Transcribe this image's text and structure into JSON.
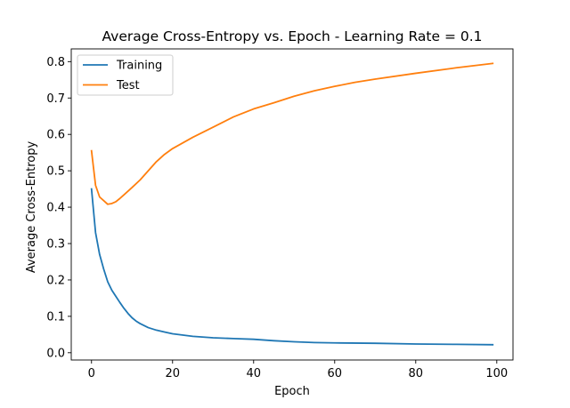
{
  "chart_data": {
    "type": "line",
    "title": "Average Cross-Entropy vs. Epoch - Learning Rate = 0.1",
    "xlabel": "Epoch",
    "ylabel": "Average Cross-Entropy",
    "xlim": [
      -5,
      104
    ],
    "ylim": [
      -0.02,
      0.835
    ],
    "xticks": [
      0,
      20,
      40,
      60,
      80,
      100
    ],
    "yticks": [
      0.0,
      0.1,
      0.2,
      0.3,
      0.4,
      0.5,
      0.6,
      0.7,
      0.8
    ],
    "xtick_labels": [
      "0",
      "20",
      "40",
      "60",
      "80",
      "100"
    ],
    "ytick_labels": [
      "0.0",
      "0.1",
      "0.2",
      "0.3",
      "0.4",
      "0.5",
      "0.6",
      "0.7",
      "0.8"
    ],
    "grid": false,
    "legend_position": "top-left",
    "series": [
      {
        "name": "Training",
        "color": "#1f77b4",
        "x": [
          0,
          1,
          2,
          3,
          4,
          5,
          6,
          7,
          8,
          9,
          10,
          11,
          12,
          14,
          16,
          18,
          20,
          25,
          30,
          35,
          40,
          45,
          50,
          55,
          60,
          70,
          80,
          90,
          99
        ],
        "y": [
          0.45,
          0.33,
          0.27,
          0.23,
          0.195,
          0.172,
          0.155,
          0.138,
          0.122,
          0.108,
          0.096,
          0.087,
          0.08,
          0.069,
          0.062,
          0.057,
          0.052,
          0.045,
          0.041,
          0.039,
          0.037,
          0.033,
          0.03,
          0.028,
          0.027,
          0.026,
          0.024,
          0.023,
          0.022
        ]
      },
      {
        "name": "Test",
        "color": "#ff7f0e",
        "x": [
          0,
          1,
          2,
          3,
          4,
          5,
          6,
          7,
          8,
          9,
          10,
          12,
          14,
          16,
          18,
          20,
          25,
          30,
          35,
          40,
          45,
          50,
          55,
          60,
          65,
          70,
          80,
          90,
          99
        ],
        "y": [
          0.555,
          0.46,
          0.428,
          0.418,
          0.408,
          0.41,
          0.415,
          0.424,
          0.434,
          0.444,
          0.454,
          0.475,
          0.5,
          0.525,
          0.545,
          0.561,
          0.592,
          0.62,
          0.648,
          0.67,
          0.687,
          0.705,
          0.72,
          0.732,
          0.743,
          0.752,
          0.768,
          0.783,
          0.795
        ]
      }
    ]
  }
}
